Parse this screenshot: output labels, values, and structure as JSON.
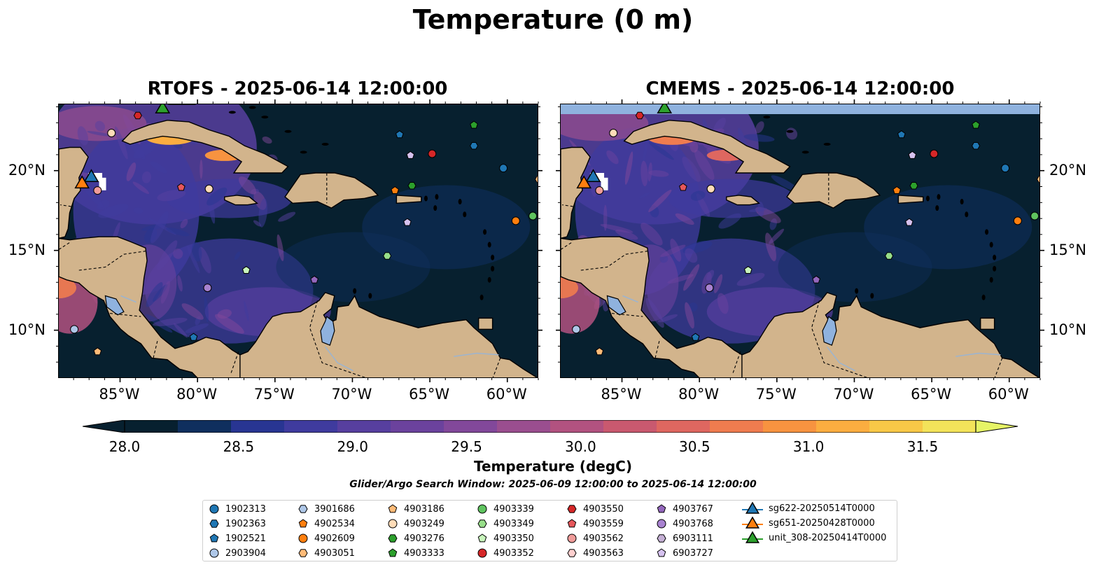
{
  "figure": {
    "title": "Temperature (0 m)",
    "left_panel_title": "RTOFS - 2025-06-14 12:00:00",
    "right_panel_title": "CMEMS - 2025-06-14 12:00:00",
    "lon_ticks": [
      "85°W",
      "80°W",
      "75°W",
      "70°W",
      "65°W",
      "60°W"
    ],
    "lat_ticks": [
      "20°N",
      "15°N",
      "10°N"
    ],
    "colorbar": {
      "label": "Temperature (degC)",
      "ticks": [
        "28.0",
        "28.5",
        "29.0",
        "29.5",
        "30.0",
        "30.5",
        "31.0",
        "31.5"
      ],
      "range": [
        28.0,
        31.5
      ],
      "colors": [
        "#07202f",
        "#0f2f5e",
        "#283592",
        "#3f3b9e",
        "#573f9f",
        "#6b429d",
        "#82489a",
        "#9a4e8f",
        "#b25280",
        "#c9596f",
        "#de6760",
        "#ef7c4f",
        "#f79340",
        "#fbad40",
        "#f8c847",
        "#f3e35a",
        "#e6f466"
      ]
    },
    "search_window": "Glider/Argo Search Window: 2025-06-09 12:00:00 to 2025-06-14 12:00:00"
  },
  "legend": {
    "floats": [
      {
        "id": "1902313",
        "marker": "circle",
        "color": "#1f77b4"
      },
      {
        "id": "1902363",
        "marker": "hexagon",
        "color": "#1f77b4"
      },
      {
        "id": "1902521",
        "marker": "pentagon",
        "color": "#1f77b4"
      },
      {
        "id": "2903904",
        "marker": "circle",
        "color": "#aec7e8"
      },
      {
        "id": "3901686",
        "marker": "hexagon",
        "color": "#aec7e8"
      },
      {
        "id": "4902534",
        "marker": "pentagon",
        "color": "#ff7f0e"
      },
      {
        "id": "4902609",
        "marker": "circle",
        "color": "#ff7f0e"
      },
      {
        "id": "4903051",
        "marker": "hexagon",
        "color": "#ffbb78"
      },
      {
        "id": "4903186",
        "marker": "pentagon",
        "color": "#ffbb78"
      },
      {
        "id": "4903249",
        "marker": "circle",
        "color": "#ffdcb8"
      },
      {
        "id": "4903276",
        "marker": "hexagon",
        "color": "#2ca02c"
      },
      {
        "id": "4903333",
        "marker": "pentagon",
        "color": "#2ca02c"
      },
      {
        "id": "4903339",
        "marker": "circle",
        "color": "#5fc45f"
      },
      {
        "id": "4903349",
        "marker": "hexagon",
        "color": "#98df8a"
      },
      {
        "id": "4903350",
        "marker": "pentagon",
        "color": "#c8f5bc"
      },
      {
        "id": "4903352",
        "marker": "circle",
        "color": "#d62728"
      },
      {
        "id": "4903550",
        "marker": "hexagon",
        "color": "#d62728"
      },
      {
        "id": "4903559",
        "marker": "pentagon",
        "color": "#e6575b"
      },
      {
        "id": "4903562",
        "marker": "circle",
        "color": "#f09c9a"
      },
      {
        "id": "4903563",
        "marker": "hexagon",
        "color": "#ffd0cf"
      },
      {
        "id": "4903767",
        "marker": "pentagon",
        "color": "#9467bd"
      },
      {
        "id": "4903768",
        "marker": "circle",
        "color": "#a882d0"
      },
      {
        "id": "6903111",
        "marker": "hexagon",
        "color": "#c5b0d5"
      },
      {
        "id": "6903727",
        "marker": "pentagon",
        "color": "#d6c2ef"
      }
    ],
    "gliders": [
      {
        "id": "sg622-20250514T0000",
        "color": "#1f77b4"
      },
      {
        "id": "sg651-20250428T0000",
        "color": "#ff7f0e"
      },
      {
        "id": "unit_308-20250414T0000",
        "color": "#2ca02c"
      }
    ]
  },
  "observations": [
    {
      "id": "1902313",
      "lon": -60.3,
      "lat": 20.2
    },
    {
      "id": "1902363",
      "lon": -62.2,
      "lat": 21.6
    },
    {
      "id": "1902521",
      "lon": -67.0,
      "lat": 22.3
    },
    {
      "id": "1902521",
      "lon": -80.3,
      "lat": 9.6
    },
    {
      "id": "2903904",
      "lon": -88.0,
      "lat": 10.1
    },
    {
      "id": "4902534",
      "lon": -67.3,
      "lat": 18.8
    },
    {
      "id": "4902609",
      "lon": -59.5,
      "lat": 16.9
    },
    {
      "id": "4903051",
      "lon": -58.0,
      "lat": 19.5
    },
    {
      "id": "4903186",
      "lon": -86.5,
      "lat": 8.7
    },
    {
      "id": "4903249",
      "lon": -85.6,
      "lat": 22.4
    },
    {
      "id": "4903249",
      "lon": -79.3,
      "lat": 18.9
    },
    {
      "id": "4903276",
      "lon": -66.2,
      "lat": 19.1
    },
    {
      "id": "4903333",
      "lon": -62.2,
      "lat": 22.9
    },
    {
      "id": "4903339",
      "lon": -58.4,
      "lat": 17.2
    },
    {
      "id": "4903349",
      "lon": -67.8,
      "lat": 14.7
    },
    {
      "id": "4903350",
      "lon": -76.9,
      "lat": 13.8
    },
    {
      "id": "4903352",
      "lon": -64.9,
      "lat": 21.1
    },
    {
      "id": "4903550",
      "lon": -83.9,
      "lat": 23.5
    },
    {
      "id": "4903559",
      "lon": -81.1,
      "lat": 19.0
    },
    {
      "id": "4903562",
      "lon": -86.5,
      "lat": 18.8
    },
    {
      "id": "4903767",
      "lon": -72.5,
      "lat": 13.2
    },
    {
      "id": "4903768",
      "lon": -79.4,
      "lat": 12.7
    },
    {
      "id": "6903727",
      "lon": -66.5,
      "lat": 16.8
    },
    {
      "id": "6903727",
      "lon": -66.3,
      "lat": 21.0
    }
  ],
  "gliders_pos": [
    {
      "id": "sg622-20250514T0000",
      "lon": -86.9,
      "lat": 19.7
    },
    {
      "id": "sg651-20250428T0000",
      "lon": -87.5,
      "lat": 19.3
    },
    {
      "id": "unit_308-20250414T0000",
      "lon": -82.3,
      "lat": 24.0
    }
  ]
}
